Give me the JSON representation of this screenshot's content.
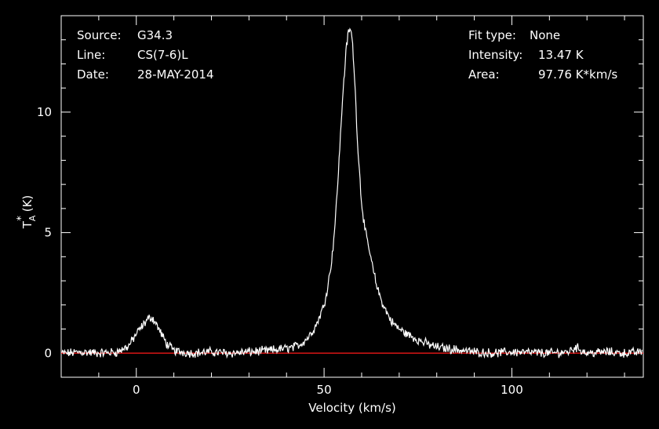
{
  "info_left": [
    {
      "key": "Source:",
      "value": "G34.3"
    },
    {
      "key": "Line:",
      "value": "CS(7-6)L"
    },
    {
      "key": "Date:",
      "value": "28-MAY-2014"
    }
  ],
  "info_right": [
    {
      "key": "Fit type:",
      "value": "None"
    },
    {
      "key": "Intensity:",
      "value": "13.47 K"
    },
    {
      "key": "Area:",
      "value": "97.76 K*km/s"
    }
  ],
  "colors": {
    "background": "#000000",
    "spectrum": "#ffffff",
    "baseline": "#ff1a1a",
    "axes": "#ffffff"
  },
  "chart_data": {
    "type": "line",
    "title": "",
    "xlabel": "Velocity (km/s)",
    "ylabel_main": "T",
    "ylabel_sup": "*",
    "ylabel_sub": "A",
    "ylabel_unit": "(K)",
    "xlim": [
      -20,
      135
    ],
    "ylim": [
      -1,
      14
    ],
    "x_ticks": [
      0,
      50,
      100
    ],
    "x_tick_labels": [
      "0",
      "50",
      "100"
    ],
    "y_ticks": [
      0,
      5,
      10
    ],
    "y_tick_labels": [
      "0",
      "5",
      "10"
    ],
    "baseline": 0,
    "grid": false,
    "series": [
      {
        "x": [
          -18,
          -15,
          -10,
          -5,
          -2,
          0,
          2,
          3,
          4,
          5,
          6,
          8,
          10,
          12,
          15,
          20,
          25,
          30,
          35,
          40,
          42,
          44,
          46,
          48,
          50,
          51,
          52,
          53,
          54,
          55,
          56,
          56.5,
          57,
          57.5,
          58,
          58.5,
          59,
          60,
          61,
          62,
          63,
          64,
          65,
          66,
          67,
          68,
          70,
          72,
          75,
          78,
          80,
          85,
          90,
          95,
          100,
          110,
          115,
          117,
          120,
          125,
          130,
          135
        ],
        "values": [
          0.0,
          0.05,
          0.0,
          0.05,
          0.3,
          0.8,
          1.2,
          1.4,
          1.5,
          1.3,
          1.0,
          0.4,
          0.1,
          0.05,
          0.0,
          0.05,
          0.0,
          0.05,
          0.1,
          0.2,
          0.25,
          0.4,
          0.7,
          1.2,
          2.0,
          2.8,
          3.8,
          5.5,
          8.0,
          10.8,
          12.8,
          13.3,
          13.47,
          13.0,
          11.8,
          10.2,
          8.5,
          6.2,
          5.0,
          4.3,
          3.5,
          2.8,
          2.3,
          1.9,
          1.6,
          1.3,
          1.0,
          0.8,
          0.55,
          0.35,
          0.25,
          0.15,
          0.05,
          0.0,
          0.05,
          0.0,
          0.05,
          0.25,
          0.0,
          0.05,
          0.0,
          0.05
        ]
      }
    ]
  }
}
